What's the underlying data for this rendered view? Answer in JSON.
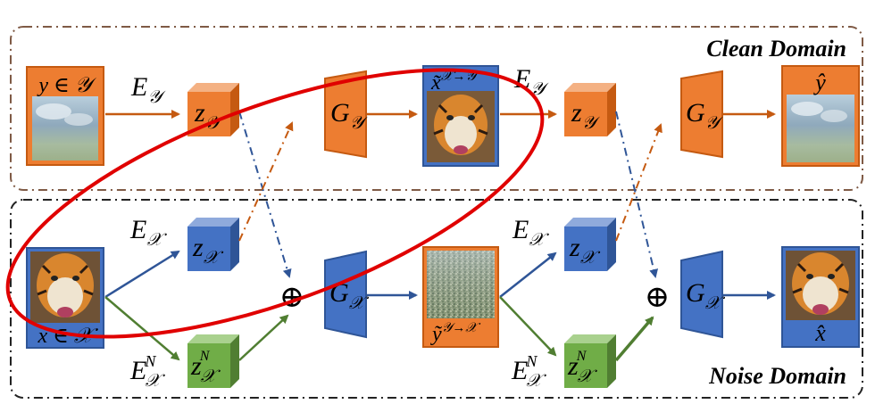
{
  "domains": {
    "clean": "Clean Domain",
    "noise": "Noise Domain"
  },
  "labels": {
    "y_in_Y": "y ∈ 𝒴",
    "x_in_X": "x ∈ 𝒳",
    "E_y_1": "E",
    "E_y_1_sub": "𝒴",
    "E_y_2": "E",
    "E_y_2_sub": "𝒴",
    "E_x_1": "E",
    "E_x_1_sub": "𝒳",
    "E_x_2": "E",
    "E_x_2_sub": "𝒳",
    "EN_x_1": "E",
    "EN_x_1_sup": "N",
    "EN_x_1_sub": "𝒳",
    "EN_x_2": "E",
    "EN_x_2_sup": "N",
    "EN_x_2_sub": "𝒳",
    "z_y": "z",
    "z_y_sub": "𝒴",
    "z_x": "z",
    "z_x_sub": "𝒳",
    "zN_x_sup": "N",
    "G_y": "G",
    "G_y_sub": "𝒴",
    "G_x": "G",
    "G_x_sub": "𝒳",
    "x_tilde": "x̃",
    "x_tilde_sup": "𝒳→𝒴",
    "y_tilde": "ỹ",
    "y_tilde_sup": "𝒴→𝒳",
    "y_hat": "ŷ",
    "x_hat": "x̂",
    "oplus": "⊕"
  },
  "colors": {
    "orange": "#ED7D31",
    "orange_dark": "#C55A11",
    "blue": "#4472C4",
    "blue_dark": "#2F5597",
    "green": "#70AD47",
    "green_dark": "#507E32",
    "red": "#E00000",
    "dash_brown": "#7F6050",
    "dash_dark": "#333333"
  }
}
